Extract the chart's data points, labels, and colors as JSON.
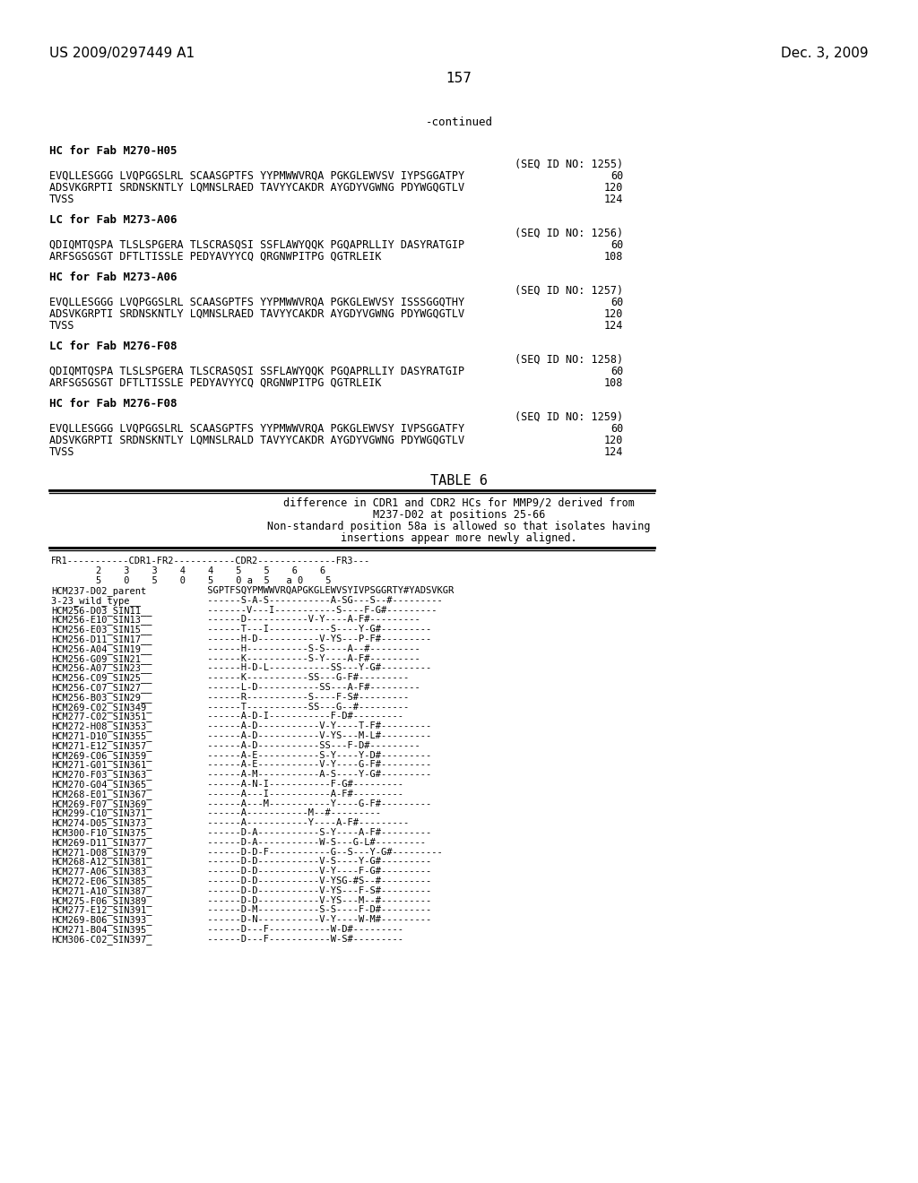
{
  "header_left": "US 2009/0297449 A1",
  "header_right": "Dec. 3, 2009",
  "page_number": "157",
  "continued_label": "-continued",
  "bg_color": "#ffffff",
  "text_color": "#000000",
  "sequences": [
    {
      "label": "HC for Fab M270-H05",
      "seq_id": "(SEQ ID NO: 1255)",
      "lines": [
        [
          "EVQLLESGGG LVQPGGSLRL SCAASGPTFS YYPMWWVRQA PGKGLEWVSV IYPSGGATPY",
          "60"
        ],
        [
          "ADSVKGRPTI SRDNSKNTLY LQMNSLRAED TAVYYCAKDR AYGDYVGWNG PDYWGQGTLV",
          "120"
        ],
        [
          "TVSS",
          "124"
        ]
      ]
    },
    {
      "label": "LC for Fab M273-A06",
      "seq_id": "(SEQ ID NO: 1256)",
      "lines": [
        [
          "QDIQMTQSPA TLSLSPGERA TLSCRASQSI SSFLAWYQQK PGQAPRLLIY DASYRATGIP",
          "60"
        ],
        [
          "ARFSGSGSGT DFTLTISSLE PEDYAVYYCQ QRGNWPITPG QGTRLEIK",
          "108"
        ]
      ]
    },
    {
      "label": "HC for Fab M273-A06",
      "seq_id": "(SEQ ID NO: 1257)",
      "lines": [
        [
          "EVQLLESGGG LVQPGGSLRL SCAASGPTFS YYPMWWVRQA PGKGLEWVSY ISSSGGQTHY",
          "60"
        ],
        [
          "ADSVKGRPTI SRDNSKNTLY LQMNSLRAED TAVYYCAKDR AYGDYVGWNG PDYWGQGTLV",
          "120"
        ],
        [
          "TVSS",
          "124"
        ]
      ]
    },
    {
      "label": "LC for Fab M276-F08",
      "seq_id": "(SEQ ID NO: 1258)",
      "lines": [
        [
          "QDIQMTQSPA TLSLSPGERA TLSCRASQSI SSFLAWYQQK PGQAPRLLIY DASYRATGIP",
          "60"
        ],
        [
          "ARFSGSGSGT DFTLTISSLE PEDYAVYYCQ QRGNWPITPG QGTRLEIK",
          "108"
        ]
      ]
    },
    {
      "label": "HC for Fab M276-F08",
      "seq_id": "(SEQ ID NO: 1259)",
      "lines": [
        [
          "EVQLLESGGG LVQPGGSLRL SCAASGPTFS YYPMWWVRQA PGKGLEWVSY IVPSGGATFY",
          "60"
        ],
        [
          "ADSVKGRPTI SRDNSKNTLY LQMNSLRALD TAVYYCAKDR AYGDYVGWNG PDYWGQGTLV",
          "120"
        ],
        [
          "TVSS",
          "124"
        ]
      ]
    }
  ],
  "table_title": "TABLE 6",
  "table_caption": [
    "difference in CDR1 and CDR2 HCs for MMP9/2 derived from",
    "M237-D02 at positions 25-66",
    "Non-standard position 58a is allowed so that isolates having",
    "insertions appear more newly aligned."
  ],
  "table_header1": "FR1-----------CDR1-FR2-----------CDR2--------------FR3---",
  "table_header2": "        2    3    3    4    4    5    5    6    6",
  "table_header3": "        5    0    5    0    5    0 a  5   a 0    5",
  "table_rows": [
    [
      "HCM237-D02_parent",
      " SGPTFSQYPMWWVRQAPGKGLEWVSYIVPSGGRTY#YADSVKGR"
    ],
    [
      "3-23_wild_type__  ",
      " ------S-A-S-----------A-SG---S--#---------"
    ],
    [
      "HCM256-D03_SIN11__",
      " -------V---I-----------S----F-G#---------"
    ],
    [
      "HCM256-E10_SIN13__",
      " ------D-----------V-Y----A-F#---------"
    ],
    [
      "HCM256-E03_SIN15__",
      " ------T---I-----------S----Y-G#---------"
    ],
    [
      "HCM256-D11_SIN17__",
      " ------H-D-----------V-YS---P-F#---------"
    ],
    [
      "HCM256-A04_SIN19__",
      " ------H-----------S-S----A--#---------"
    ],
    [
      "HCM256-G09_SIN21__",
      " ------K-----------S-Y----A-F#---------"
    ],
    [
      "HCM256-A07_SIN23__",
      " ------H-D-L-----------SS---Y-G#---------"
    ],
    [
      "HCM256-C09_SIN25__",
      " ------K-----------SS---G-F#---------"
    ],
    [
      "HCM256-C07_SIN27__",
      " ------L-D-----------SS---A-F#---------"
    ],
    [
      "HCM256-B03_SIN29__",
      " ------R-----------S----F-S#---------"
    ],
    [
      "HCM269-C02_SIN349_",
      " ------T-----------SS---G--#---------"
    ],
    [
      "HCM277-C02_SIN351_",
      " ------A-D-I-----------F-D#---------"
    ],
    [
      "HCM272-H08_SIN353_",
      " ------A-D-----------V-Y----T-F#---------"
    ],
    [
      "HCM271-D10_SIN355_",
      " ------A-D-----------V-YS---M-L#---------"
    ],
    [
      "HCM271-E12_SIN357_",
      " ------A-D-----------SS---F-D#---------"
    ],
    [
      "HCM269-C06_SIN359_",
      " ------A-E-----------S-Y----Y-D#---------"
    ],
    [
      "HCM271-G01_SIN361_",
      " ------A-E-----------V-Y----G-F#---------"
    ],
    [
      "HCM270-F03_SIN363_",
      " ------A-M-----------A-S----Y-G#---------"
    ],
    [
      "HCM270-G04_SIN365_",
      " ------A-N-I-----------F-G#---------"
    ],
    [
      "HCM268-E01_SIN367_",
      " ------A---I-----------A-F#---------"
    ],
    [
      "HCM269-F07_SIN369_",
      " ------A---M-----------Y----G-F#---------"
    ],
    [
      "HCM299-C10_SIN371_",
      " ------A-----------M--#---------"
    ],
    [
      "HCM274-D05_SIN373_",
      " ------A-----------Y----A-F#---------"
    ],
    [
      "HCM300-F10_SIN375_",
      " ------D-A-----------S-Y----A-F#---------"
    ],
    [
      "HCM269-D11_SIN377_",
      " ------D-A-----------W-S---G-L#---------"
    ],
    [
      "HCM271-D08_SIN379_",
      " ------D-D-F-----------G--S---Y-G#---------"
    ],
    [
      "HCM268-A12_SIN381_",
      " ------D-D-----------V-S----Y-G#---------"
    ],
    [
      "HCM277-A06_SIN383_",
      " ------D-D-----------V-Y----F-G#---------"
    ],
    [
      "HCM272-E06_SIN385_",
      " ------D-D-----------V-YSG-#S--#---------"
    ],
    [
      "HCM271-A10_SIN387_",
      " ------D-D-----------V-YS---F-S#---------"
    ],
    [
      "HCM275-F06_SIN389_",
      " ------D-D-----------V-YS---M--#---------"
    ],
    [
      "HCM277-E12_SIN391_",
      " ------D-M-----------S-S----F-D#---------"
    ],
    [
      "HCM269-B06_SIN393_",
      " ------D-N-----------V-Y----W-M#---------"
    ],
    [
      "HCM271-B04_SIN395_",
      " ------D---F-----------W-D#---------"
    ],
    [
      "HCM306-C02_SIN397_",
      " ------D---F-----------W-S#---------"
    ]
  ]
}
